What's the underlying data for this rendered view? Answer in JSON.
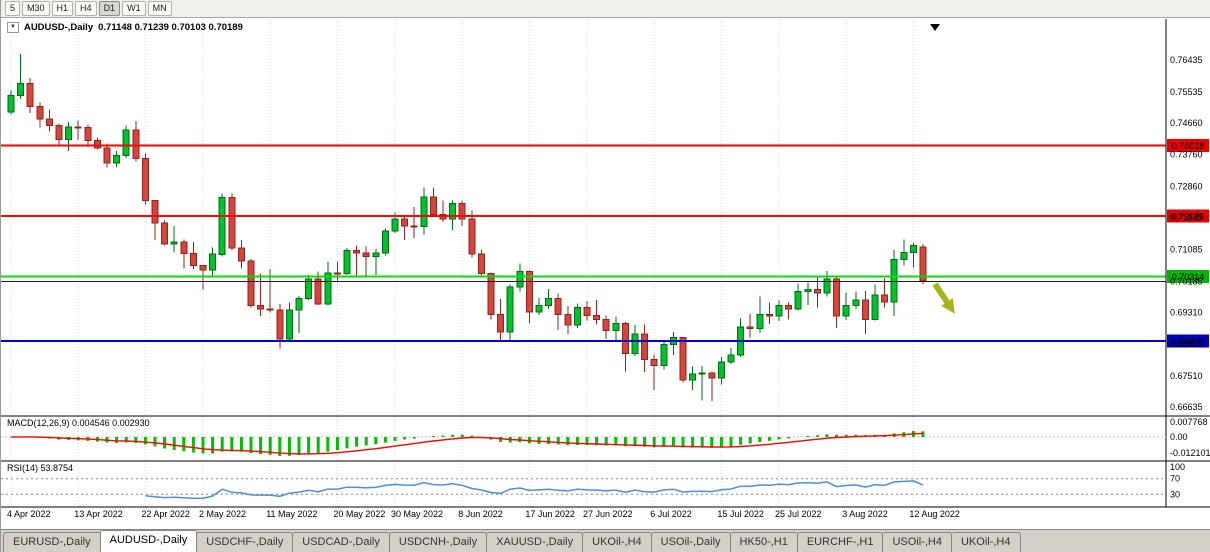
{
  "toolbar": {
    "timeframes": [
      {
        "label": "5",
        "active": false
      },
      {
        "label": "M30",
        "active": false
      },
      {
        "label": "H1",
        "active": false
      },
      {
        "label": "H4",
        "active": false
      },
      {
        "label": "D1",
        "active": true
      },
      {
        "label": "W1",
        "active": false
      },
      {
        "label": "MN",
        "active": false
      }
    ]
  },
  "chart": {
    "title": "AUDUSD-,Daily",
    "ohlc": "0.71148 0.71239 0.70103 0.70189"
  },
  "chart_data": {
    "type": "candlestick",
    "symbol": "AUDUSD-",
    "period": "Daily",
    "ohlc_display": {
      "open": "0.71148",
      "high": "0.71239",
      "low": "0.70103",
      "close": "0.70189"
    },
    "colors": {
      "up": {
        "fill": "#00c32b",
        "stroke": "#00691a"
      },
      "down": {
        "fill": "#d6453c",
        "stroke": "#8e241e"
      },
      "grid": "#d4d4d4",
      "separator": "#000000"
    },
    "y_axis": {
      "ticks": [
        0.76435,
        0.75535,
        0.7466,
        0.7376,
        0.7286,
        0.71985,
        0.71085,
        0.70185,
        0.6931,
        0.6841,
        0.6751,
        0.66635
      ]
    },
    "x_ticks": [
      {
        "label": "4 Apr 2022",
        "index": 0
      },
      {
        "label": "13 Apr 2022",
        "index": 7
      },
      {
        "label": "22 Apr 2022",
        "index": 14
      },
      {
        "label": "2 May 2022",
        "index": 20
      },
      {
        "label": "11 May 2022",
        "index": 27
      },
      {
        "label": "20 May 2022",
        "index": 34
      },
      {
        "label": "30 May 2022",
        "index": 40
      },
      {
        "label": "8 Jun 2022",
        "index": 47
      },
      {
        "label": "17 Jun 2022",
        "index": 54
      },
      {
        "label": "27 Jun 2022",
        "index": 60
      },
      {
        "label": "6 Jul 2022",
        "index": 67
      },
      {
        "label": "15 Jul 2022",
        "index": 74
      },
      {
        "label": "25 Jul 2022",
        "index": 80
      },
      {
        "label": "3 Aug 2022",
        "index": 87
      },
      {
        "label": "12 Aug 2022",
        "index": 94
      }
    ],
    "candles": [
      [
        0.7497,
        0.7557,
        0.749,
        0.7543
      ],
      [
        0.7543,
        0.7661,
        0.7533,
        0.7577
      ],
      [
        0.7577,
        0.7593,
        0.7494,
        0.7512
      ],
      [
        0.7512,
        0.7524,
        0.7453,
        0.7477
      ],
      [
        0.7477,
        0.7503,
        0.7442,
        0.7459
      ],
      [
        0.7459,
        0.7464,
        0.7399,
        0.7419
      ],
      [
        0.7419,
        0.7469,
        0.7387,
        0.7454
      ],
      [
        0.7454,
        0.7472,
        0.7418,
        0.7453
      ],
      [
        0.7453,
        0.7462,
        0.7398,
        0.7416
      ],
      [
        0.7416,
        0.7425,
        0.7391,
        0.7395
      ],
      [
        0.7395,
        0.7408,
        0.734,
        0.7352
      ],
      [
        0.7352,
        0.7387,
        0.7342,
        0.7374
      ],
      [
        0.7374,
        0.7458,
        0.7367,
        0.7446
      ],
      [
        0.7446,
        0.7471,
        0.7357,
        0.7365
      ],
      [
        0.7365,
        0.738,
        0.7235,
        0.7246
      ],
      [
        0.7246,
        0.7247,
        0.7135,
        0.7183
      ],
      [
        0.7183,
        0.719,
        0.7119,
        0.7124
      ],
      [
        0.7124,
        0.7175,
        0.71,
        0.713
      ],
      [
        0.713,
        0.7137,
        0.7055,
        0.7097
      ],
      [
        0.7097,
        0.713,
        0.7053,
        0.7063
      ],
      [
        0.7063,
        0.7065,
        0.6995,
        0.705
      ],
      [
        0.705,
        0.7114,
        0.7029,
        0.7095
      ],
      [
        0.7095,
        0.7266,
        0.7089,
        0.7255
      ],
      [
        0.7255,
        0.7266,
        0.7106,
        0.7112
      ],
      [
        0.7112,
        0.7135,
        0.7055,
        0.7076
      ],
      [
        0.7076,
        0.7082,
        0.6945,
        0.695
      ],
      [
        0.695,
        0.704,
        0.692,
        0.694
      ],
      [
        0.694,
        0.7053,
        0.693,
        0.6938
      ],
      [
        0.6938,
        0.6955,
        0.6829,
        0.6855
      ],
      [
        0.6855,
        0.6958,
        0.685,
        0.6938
      ],
      [
        0.6938,
        0.6977,
        0.6872,
        0.697
      ],
      [
        0.697,
        0.7037,
        0.6966,
        0.7025
      ],
      [
        0.7025,
        0.7046,
        0.6952,
        0.6955
      ],
      [
        0.6955,
        0.7073,
        0.695,
        0.7042
      ],
      [
        0.7042,
        0.7075,
        0.7015,
        0.704
      ],
      [
        0.704,
        0.7113,
        0.7037,
        0.7105
      ],
      [
        0.7105,
        0.712,
        0.7033,
        0.7098
      ],
      [
        0.7098,
        0.7117,
        0.7035,
        0.7089
      ],
      [
        0.7089,
        0.711,
        0.7036,
        0.7098
      ],
      [
        0.7098,
        0.7168,
        0.7092,
        0.716
      ],
      [
        0.716,
        0.7213,
        0.7155,
        0.7195
      ],
      [
        0.7195,
        0.7203,
        0.7135,
        0.7175
      ],
      [
        0.7175,
        0.7228,
        0.714,
        0.7173
      ],
      [
        0.7173,
        0.7283,
        0.7151,
        0.7257
      ],
      [
        0.7257,
        0.7283,
        0.72,
        0.7207
      ],
      [
        0.7207,
        0.7246,
        0.7186,
        0.7195
      ],
      [
        0.7195,
        0.7247,
        0.7163,
        0.7238
      ],
      [
        0.7238,
        0.7245,
        0.7174,
        0.7195
      ],
      [
        0.7195,
        0.7219,
        0.7086,
        0.7095
      ],
      [
        0.7095,
        0.7108,
        0.7035,
        0.704
      ],
      [
        0.704,
        0.7043,
        0.6911,
        0.6925
      ],
      [
        0.6925,
        0.6969,
        0.685,
        0.6875
      ],
      [
        0.6875,
        0.701,
        0.6853,
        0.7003
      ],
      [
        0.7003,
        0.7069,
        0.6989,
        0.7046
      ],
      [
        0.7046,
        0.7049,
        0.6901,
        0.6932
      ],
      [
        0.6932,
        0.6972,
        0.6924,
        0.695
      ],
      [
        0.695,
        0.6997,
        0.694,
        0.697
      ],
      [
        0.697,
        0.6984,
        0.6881,
        0.6925
      ],
      [
        0.6925,
        0.6949,
        0.6869,
        0.6895
      ],
      [
        0.6895,
        0.6956,
        0.6887,
        0.6945
      ],
      [
        0.6945,
        0.6963,
        0.6908,
        0.6922
      ],
      [
        0.6922,
        0.6965,
        0.6897,
        0.691
      ],
      [
        0.691,
        0.6922,
        0.6855,
        0.688
      ],
      [
        0.688,
        0.6919,
        0.685,
        0.69
      ],
      [
        0.69,
        0.6903,
        0.6764,
        0.6815
      ],
      [
        0.6815,
        0.6895,
        0.6807,
        0.687
      ],
      [
        0.687,
        0.6896,
        0.6762,
        0.6797
      ],
      [
        0.6797,
        0.6812,
        0.6712,
        0.678
      ],
      [
        0.678,
        0.6848,
        0.6769,
        0.684
      ],
      [
        0.684,
        0.6875,
        0.681,
        0.686
      ],
      [
        0.686,
        0.6861,
        0.6732,
        0.674
      ],
      [
        0.674,
        0.6778,
        0.6711,
        0.6757
      ],
      [
        0.6757,
        0.6779,
        0.6682,
        0.676
      ],
      [
        0.676,
        0.6764,
        0.6681,
        0.6745
      ],
      [
        0.6745,
        0.6805,
        0.6727,
        0.679
      ],
      [
        0.679,
        0.683,
        0.6785,
        0.681
      ],
      [
        0.681,
        0.6913,
        0.6805,
        0.689
      ],
      [
        0.689,
        0.6928,
        0.686,
        0.6885
      ],
      [
        0.6885,
        0.6976,
        0.6873,
        0.6925
      ],
      [
        0.6925,
        0.6958,
        0.6898,
        0.692
      ],
      [
        0.692,
        0.6964,
        0.6906,
        0.695
      ],
      [
        0.695,
        0.6959,
        0.691,
        0.694
      ],
      [
        0.694,
        0.7012,
        0.6936,
        0.699
      ],
      [
        0.699,
        0.7015,
        0.6952,
        0.6995
      ],
      [
        0.6995,
        0.7032,
        0.6945,
        0.6985
      ],
      [
        0.6985,
        0.7047,
        0.6975,
        0.7025
      ],
      [
        0.7025,
        0.7031,
        0.6886,
        0.692
      ],
      [
        0.692,
        0.6987,
        0.6909,
        0.695
      ],
      [
        0.695,
        0.699,
        0.694,
        0.6965
      ],
      [
        0.6965,
        0.6991,
        0.6869,
        0.691
      ],
      [
        0.691,
        0.7009,
        0.6908,
        0.698
      ],
      [
        0.698,
        0.7027,
        0.6944,
        0.696
      ],
      [
        0.696,
        0.7109,
        0.6921,
        0.708
      ],
      [
        0.708,
        0.7136,
        0.7063,
        0.71
      ],
      [
        0.71,
        0.7126,
        0.7057,
        0.712
      ],
      [
        0.71148,
        0.71239,
        0.70103,
        0.70189
      ]
    ],
    "hlines": [
      {
        "price": 0.74018,
        "color": "#ff0000",
        "width": 2,
        "label": "0.74018",
        "label_bg": "#e60000"
      },
      {
        "price": 0.72029,
        "color": "#ff0000",
        "width": 2,
        "label": "0.72029",
        "label_bg": "#e60000"
      },
      {
        "price": 0.70314,
        "color": "#00e000",
        "width": 2,
        "label": "0.70314",
        "label_bg": "#00b400"
      },
      {
        "price": 0.7018,
        "color": "#1a1a1a",
        "width": 1
      },
      {
        "price": 0.68499,
        "color": "#0000cc",
        "width": 2,
        "label": "0.68499",
        "label_bg": "#0000c0"
      }
    ],
    "indicators": {
      "macd": {
        "label": "MACD(12,26,9)",
        "values_text": "0.004546 0.002930",
        "fast": 12,
        "slow": 26,
        "signal": 9,
        "axis_labels": [
          "0.007768",
          "0.00",
          "-0.012101"
        ],
        "hist_color": "#00c000",
        "signal_color": "#ff0000"
      },
      "rsi": {
        "label": "RSI(14)",
        "value_text": "53.8754",
        "period": 14,
        "axis_labels": [
          "100",
          "70",
          "30"
        ],
        "levels": [
          70,
          30
        ],
        "line_color": "#4f8fd0"
      }
    },
    "annotations": {
      "arrow": {
        "color": "#a6b41e",
        "direction": "down-right"
      },
      "end_of_data_marker": {
        "color": "#000000"
      }
    }
  },
  "tabs": {
    "items": [
      {
        "label": "EURUSD-,Daily",
        "active": false
      },
      {
        "label": "AUDUSD-,Daily",
        "active": true
      },
      {
        "label": "USDCHF-,Daily",
        "active": false
      },
      {
        "label": "USDCAD-,Daily",
        "active": false
      },
      {
        "label": "USDCNH-,Daily",
        "active": false
      },
      {
        "label": "XAUUSD-,Daily",
        "active": false
      },
      {
        "label": "UKOil-,H4",
        "active": false
      },
      {
        "label": "USOil-,Daily",
        "active": false
      },
      {
        "label": "HK50-,H1",
        "active": false
      },
      {
        "label": "EURCHF-,H1",
        "active": false
      },
      {
        "label": "USOil-,H4",
        "active": false
      },
      {
        "label": "UKOil-,H4",
        "active": false
      }
    ]
  }
}
